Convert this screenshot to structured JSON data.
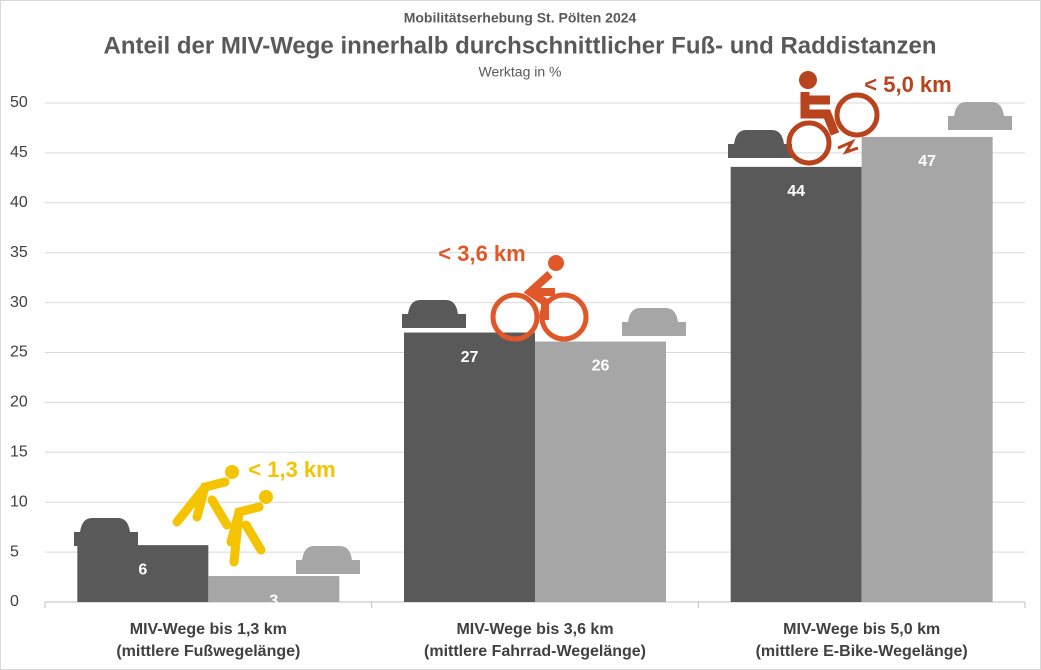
{
  "chart_data": {
    "type": "bar",
    "supertitle": "Mobilitätserhebung St. Pölten 2024",
    "title": "Anteil der MIV-Wege innerhalb durchschnittlicher Fuß- und Raddistanzen",
    "subtitle": "Werktag in %",
    "categories": [
      "MIV-Wege bis 1,3 km",
      "MIV-Wege bis 3,6 km",
      "MIV-Wege bis 5,0 km"
    ],
    "category_notes": [
      "(mittlere Fußwegelänge)",
      "(mittlere Fahrrad-Wegelänge)",
      "(mittlere E-Bike-Wegelänge)"
    ],
    "series": [
      {
        "color": "#595959",
        "values": [
          5.7,
          27.0,
          43.6
        ],
        "value_labels": [
          "6",
          "27",
          "44"
        ]
      },
      {
        "color": "#a6a6a6",
        "values": [
          2.6,
          26.1,
          46.6
        ],
        "value_labels": [
          "3",
          "26",
          "47"
        ]
      }
    ],
    "annotations": [
      {
        "text": "< 1,3 km",
        "color": "#f5c400"
      },
      {
        "text": "< 3,6 km",
        "color": "#e0582a"
      },
      {
        "text": "< 5,0 km",
        "color": "#b8431d"
      }
    ],
    "ylim": [
      0,
      50
    ],
    "yticks": [
      0,
      5,
      10,
      15,
      20,
      25,
      30,
      35,
      40,
      45,
      50
    ],
    "grid": true
  }
}
